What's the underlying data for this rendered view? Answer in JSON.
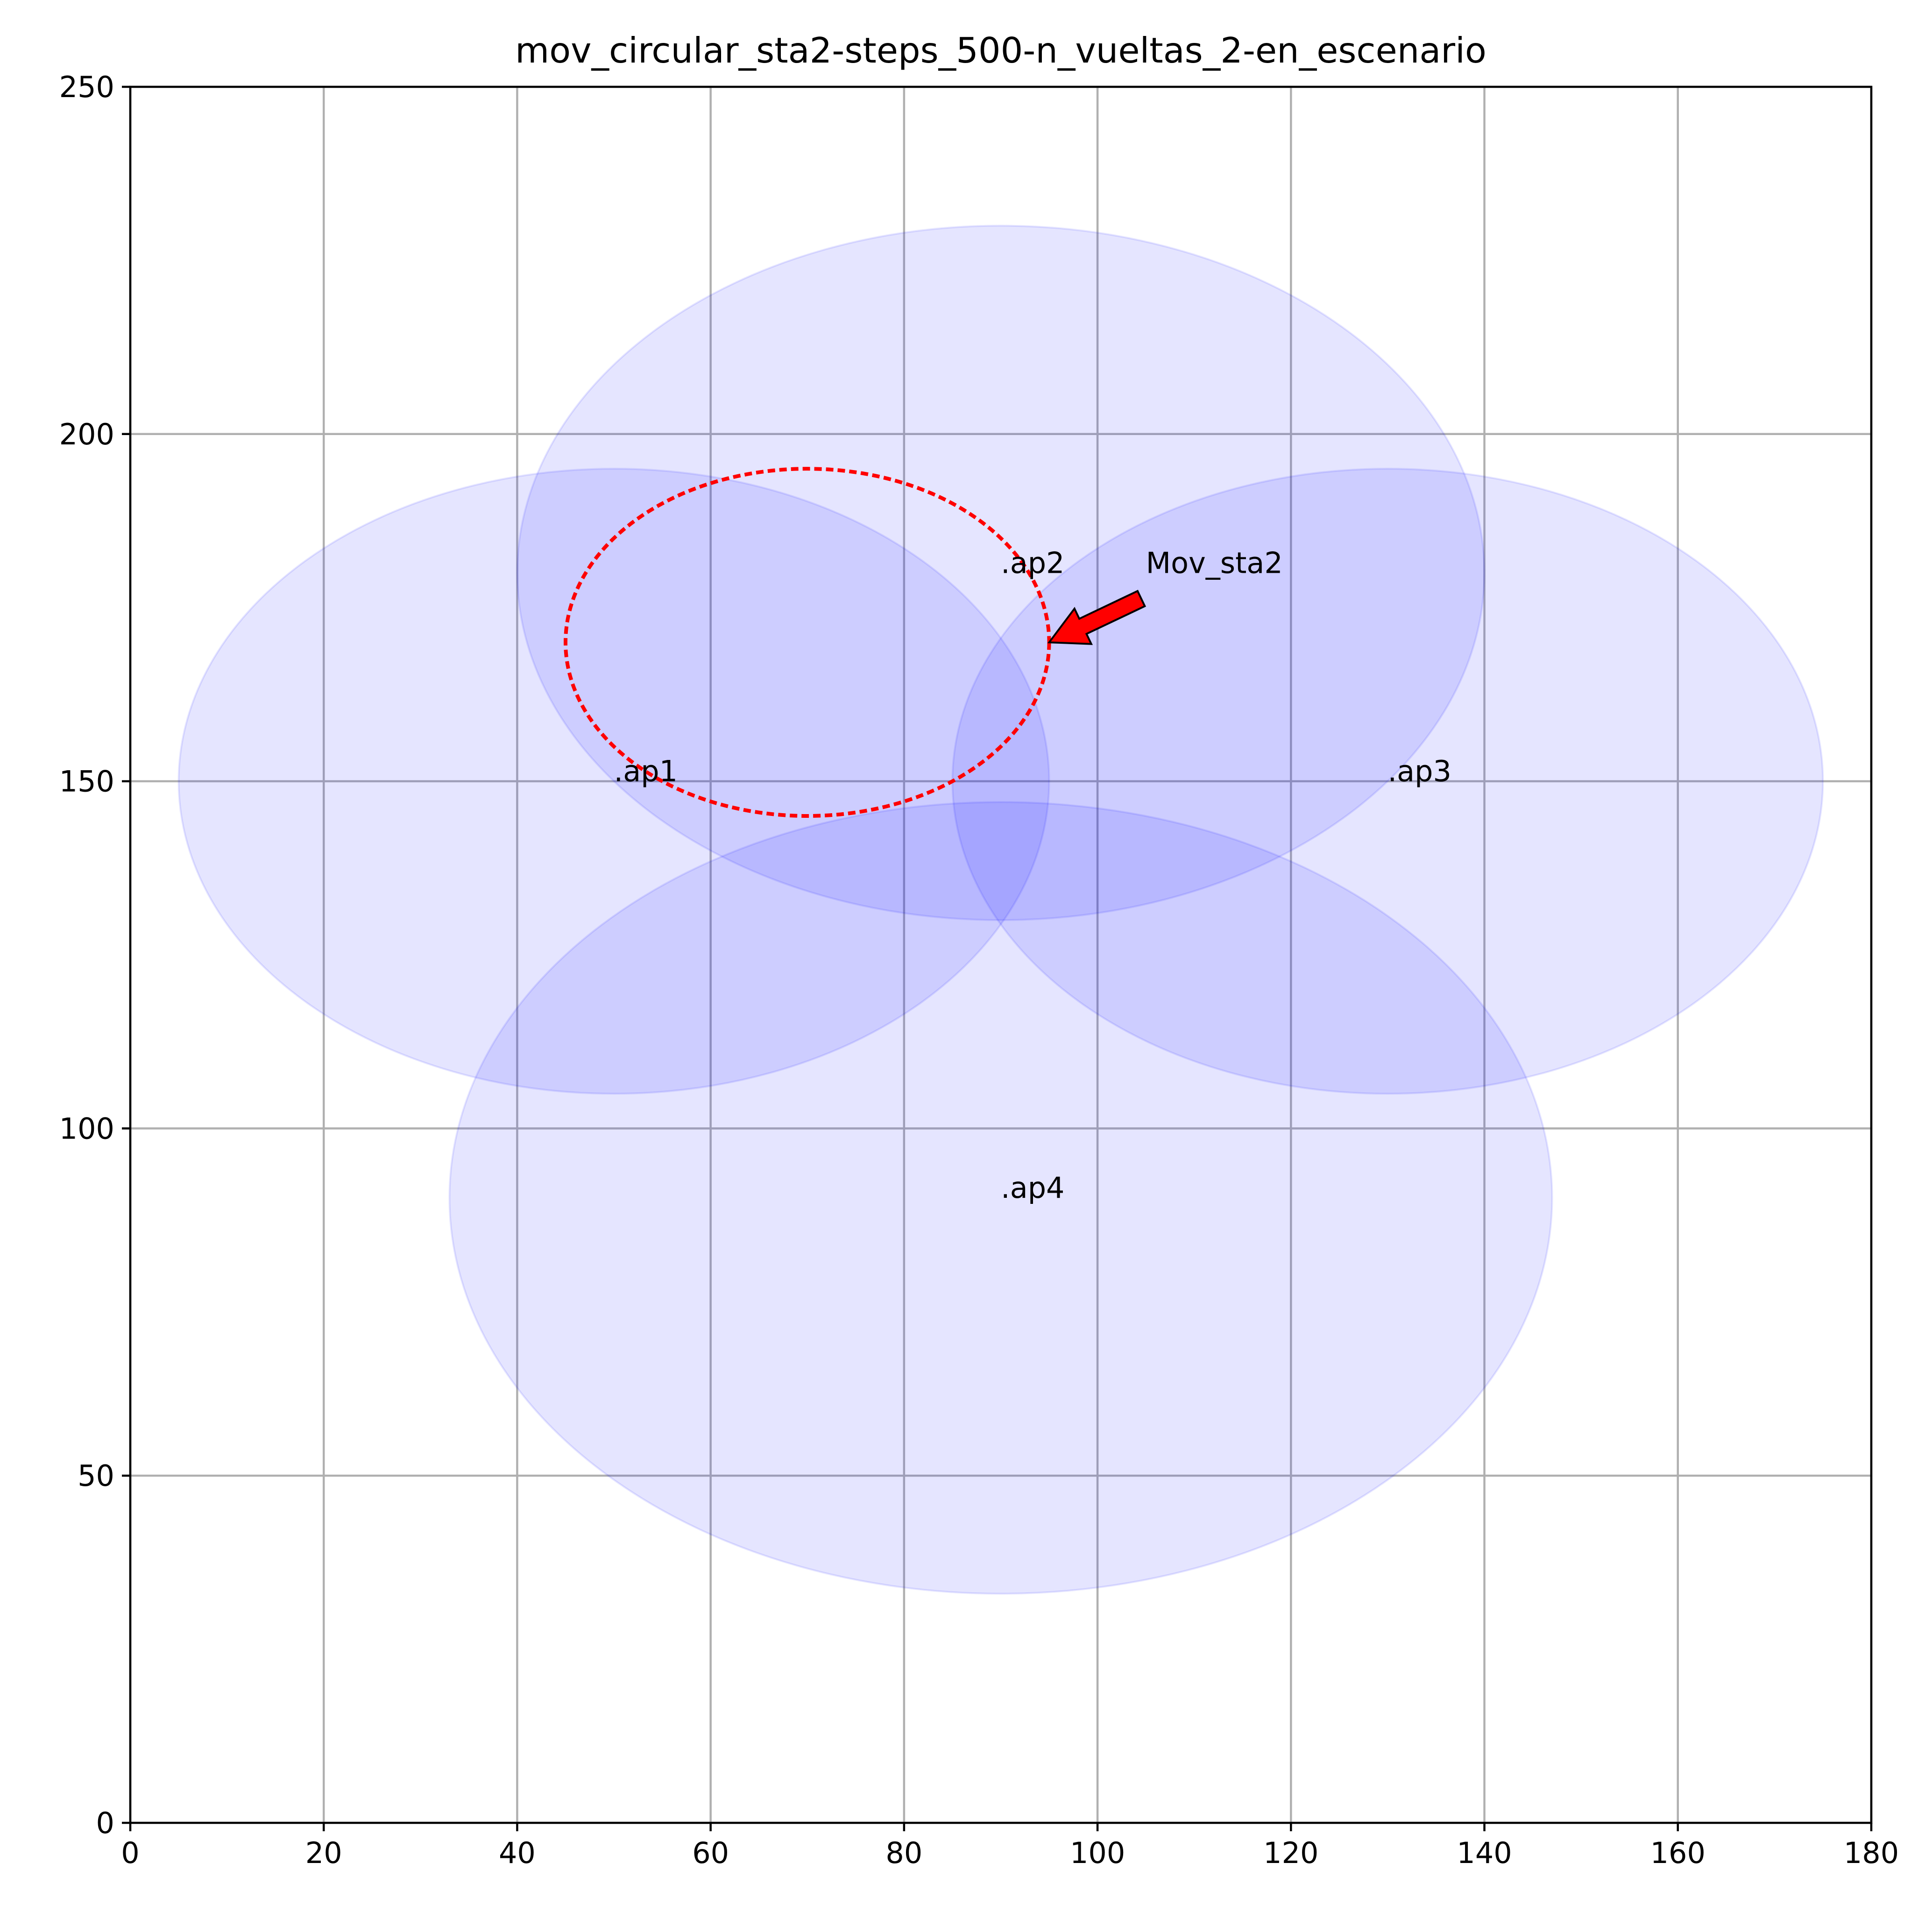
{
  "chart_data": {
    "type": "scatter",
    "title": "mov_circular_sta2-steps_500-n_vueltas_2-en_escenario",
    "xlabel": "",
    "ylabel": "",
    "xlim": [
      0,
      180
    ],
    "ylim": [
      0,
      250
    ],
    "xticks": [
      0,
      20,
      40,
      60,
      80,
      100,
      120,
      140,
      160,
      180
    ],
    "yticks": [
      0,
      50,
      100,
      150,
      200,
      250
    ],
    "grid": true,
    "access_points": [
      {
        "label": ".ap1",
        "x": 50,
        "y": 150,
        "range": 45
      },
      {
        "label": ".ap2",
        "x": 90,
        "y": 180,
        "range": 50
      },
      {
        "label": ".ap3",
        "x": 130,
        "y": 150,
        "range": 45
      },
      {
        "label": ".ap4",
        "x": 90,
        "y": 90,
        "range": 57
      }
    ],
    "coverage_color": "#0000ff",
    "trajectory": {
      "shape": "circle",
      "center": [
        70,
        170
      ],
      "radius": 25,
      "color": "#ff0000",
      "linestyle": "dashed"
    },
    "annotation": {
      "text": "Mov_sta2",
      "text_pos": [
        105,
        180
      ],
      "target": [
        95,
        170
      ],
      "color": "#ff0000"
    }
  }
}
